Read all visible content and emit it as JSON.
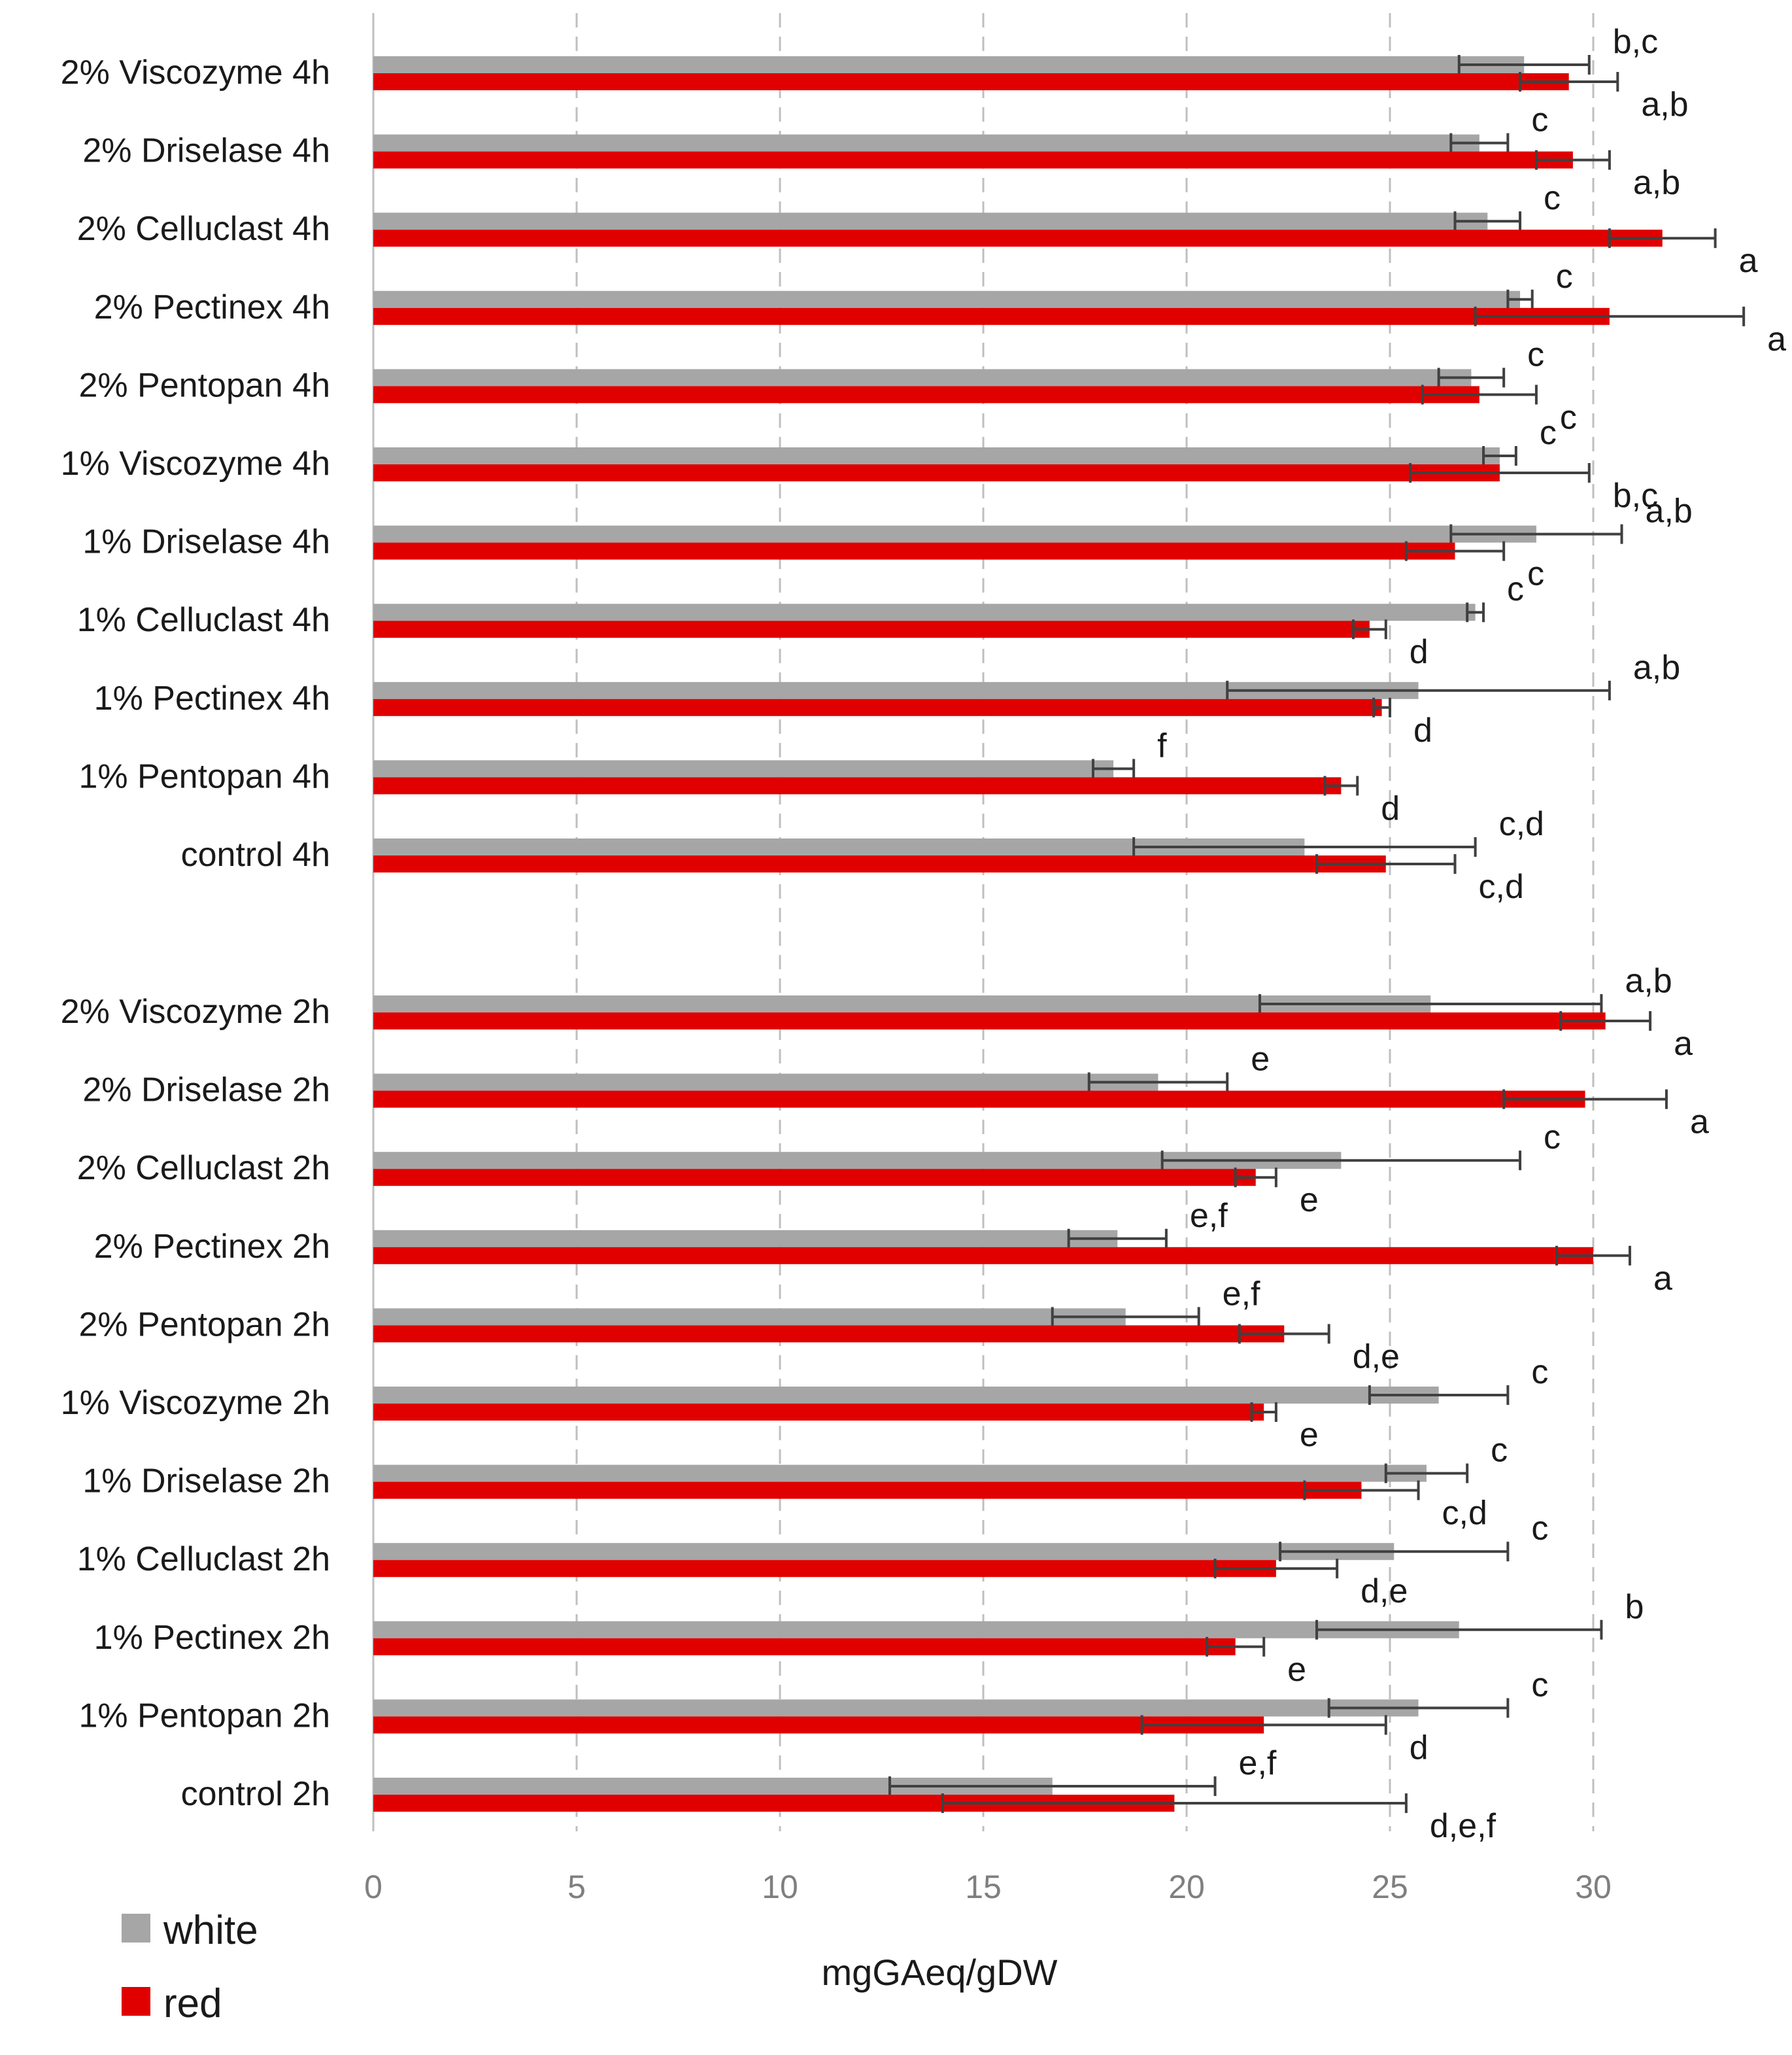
{
  "chart_data": {
    "type": "bar",
    "orientation": "horizontal",
    "xlabel": "mgGAeq/gDW",
    "xlim": [
      0,
      30
    ],
    "xticks": [
      0,
      5,
      10,
      15,
      20,
      25,
      30
    ],
    "grid": "vertical dashed",
    "legend_position": "bottom-left",
    "colors": {
      "white": "#a6a6a6",
      "red": "#e00000",
      "error_bar": "#404040",
      "grid": "#bfbfbf"
    },
    "legend": [
      {
        "key": "white",
        "label": "white"
      },
      {
        "key": "red",
        "label": "red"
      }
    ],
    "groups": [
      {
        "categories": [
          {
            "label": "2% Viscozyme 4h",
            "white": {
              "value": 28.3,
              "err": 1.6,
              "sig": "b,c"
            },
            "red": {
              "value": 29.4,
              "err": 1.2,
              "sig": "a,b"
            }
          },
          {
            "label": "2% Driselase 4h",
            "white": {
              "value": 27.2,
              "err": 0.7,
              "sig": "c"
            },
            "red": {
              "value": 29.5,
              "err": 0.9,
              "sig": "a,b"
            }
          },
          {
            "label": "2% Celluclast 4h",
            "white": {
              "value": 27.4,
              "err": 0.8,
              "sig": "c"
            },
            "red": {
              "value": 31.7,
              "err": 1.3,
              "sig": "a"
            }
          },
          {
            "label": "2% Pectinex 4h",
            "white": {
              "value": 28.2,
              "err": 0.3,
              "sig": "c"
            },
            "red": {
              "value": 30.4,
              "err": 3.3,
              "sig": "a"
            }
          },
          {
            "label": "2% Pentopan 4h",
            "white": {
              "value": 27.0,
              "err": 0.8,
              "sig": "c"
            },
            "red": {
              "value": 27.2,
              "err": 1.4,
              "sig": "c"
            }
          },
          {
            "label": "1% Viscozyme 4h",
            "white": {
              "value": 27.7,
              "err": 0.4,
              "sig": "c"
            },
            "red": {
              "value": 27.7,
              "err": 2.2,
              "sig": "b,c"
            }
          },
          {
            "label": "1% Driselase 4h",
            "white": {
              "value": 28.6,
              "err": 2.1,
              "sig": "a,b"
            },
            "red": {
              "value": 26.6,
              "err": 1.2,
              "sig": "c"
            }
          },
          {
            "label": "1% Celluclast 4h",
            "white": {
              "value": 27.1,
              "err": 0.2,
              "sig": "c"
            },
            "red": {
              "value": 24.5,
              "err": 0.4,
              "sig": "d"
            }
          },
          {
            "label": "1% Pectinex 4h",
            "white": {
              "value": 25.7,
              "err": 4.7,
              "sig": "a,b"
            },
            "red": {
              "value": 24.8,
              "err": 0.2,
              "sig": "d"
            }
          },
          {
            "label": "1% Pentopan 4h",
            "white": {
              "value": 18.2,
              "err": 0.5,
              "sig": "f"
            },
            "red": {
              "value": 23.8,
              "err": 0.4,
              "sig": "d"
            }
          },
          {
            "label": "control 4h",
            "white": {
              "value": 22.9,
              "err": 4.2,
              "sig": "c,d"
            },
            "red": {
              "value": 24.9,
              "err": 1.7,
              "sig": "c,d"
            }
          }
        ]
      },
      {
        "categories": [
          {
            "label": "2% Viscozyme 2h",
            "white": {
              "value": 26.0,
              "err": 4.2,
              "sig": "a,b"
            },
            "red": {
              "value": 30.3,
              "err": 1.1,
              "sig": "a"
            }
          },
          {
            "label": "2% Driselase 2h",
            "white": {
              "value": 19.3,
              "err": 1.7,
              "sig": "e"
            },
            "red": {
              "value": 29.8,
              "err": 2.0,
              "sig": "a"
            }
          },
          {
            "label": "2% Celluclast 2h",
            "white": {
              "value": 23.8,
              "err": 4.4,
              "sig": "c"
            },
            "red": {
              "value": 21.7,
              "err": 0.5,
              "sig": "e"
            }
          },
          {
            "label": "2% Pectinex 2h",
            "white": {
              "value": 18.3,
              "err": 1.2,
              "sig": "e,f"
            },
            "red": {
              "value": 30.0,
              "err": 0.9,
              "sig": "a"
            }
          },
          {
            "label": "2% Pentopan 2h",
            "white": {
              "value": 18.5,
              "err": 1.8,
              "sig": "e,f"
            },
            "red": {
              "value": 22.4,
              "err": 1.1,
              "sig": "d,e"
            }
          },
          {
            "label": "1% Viscozyme 2h",
            "white": {
              "value": 26.2,
              "err": 1.7,
              "sig": "c"
            },
            "red": {
              "value": 21.9,
              "err": 0.3,
              "sig": "e"
            }
          },
          {
            "label": "1% Driselase 2h",
            "white": {
              "value": 25.9,
              "err": 1.0,
              "sig": "c"
            },
            "red": {
              "value": 24.3,
              "err": 1.4,
              "sig": "c,d"
            }
          },
          {
            "label": "1% Celluclast 2h",
            "white": {
              "value": 25.1,
              "err": 2.8,
              "sig": "c"
            },
            "red": {
              "value": 22.2,
              "err": 1.5,
              "sig": "d,e"
            }
          },
          {
            "label": "1% Pectinex 2h",
            "white": {
              "value": 26.7,
              "err": 3.5,
              "sig": "b"
            },
            "red": {
              "value": 21.2,
              "err": 0.7,
              "sig": "e"
            }
          },
          {
            "label": "1% Pentopan 2h",
            "white": {
              "value": 25.7,
              "err": 2.2,
              "sig": "c"
            },
            "red": {
              "value": 21.9,
              "err": 3.0,
              "sig": "d"
            }
          },
          {
            "label": "control 2h",
            "white": {
              "value": 16.7,
              "err": 4.0,
              "sig": "e,f"
            },
            "red": {
              "value": 19.7,
              "err": 5.7,
              "sig": "d,e,f"
            }
          }
        ]
      }
    ]
  }
}
